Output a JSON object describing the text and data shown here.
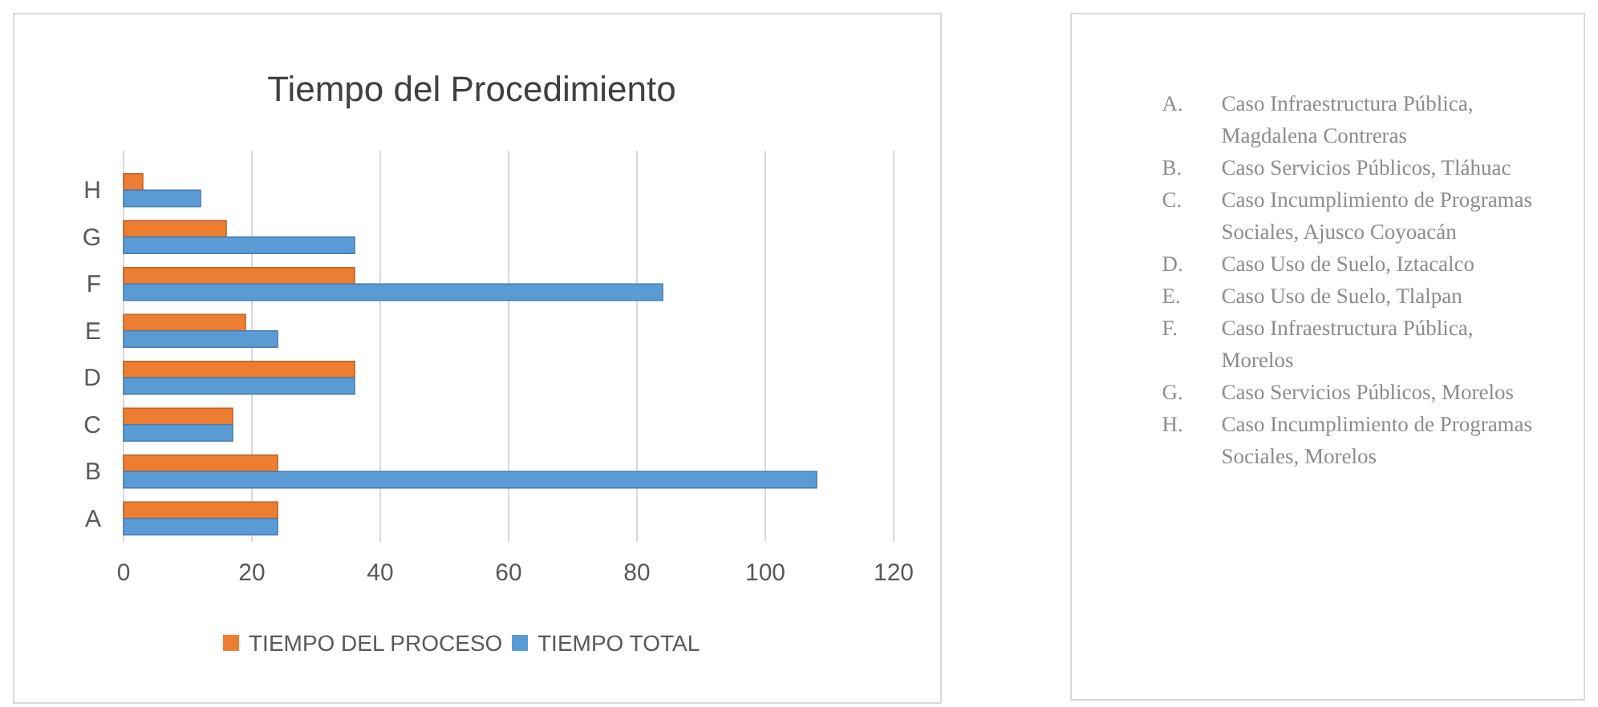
{
  "chart_data": {
    "type": "bar",
    "orientation": "horizontal",
    "title": "Tiempo del Procedimiento",
    "categories": [
      "H",
      "G",
      "F",
      "E",
      "D",
      "C",
      "B",
      "A"
    ],
    "series": [
      {
        "name": "TIEMPO DEL PROCESO",
        "color": "#ed7d31",
        "values": [
          3,
          16,
          36,
          19,
          36,
          17,
          24,
          24
        ]
      },
      {
        "name": "TIEMPO TOTAL",
        "color": "#5b9bd5",
        "values": [
          12,
          36,
          84,
          24,
          36,
          17,
          108,
          24
        ]
      }
    ],
    "xlim": [
      0,
      120
    ],
    "xticks": [
      0,
      20,
      40,
      60,
      80,
      100,
      120
    ],
    "grid": "x",
    "legend": "bottom",
    "annotations": [
      "A. Caso Infraestructura Pública, Magdalena Contreras",
      "B. Caso Servicios Públicos, Tláhuac",
      "C. Caso Incumplimiento de Programas Sociales, Ajusco Coyoacán",
      "D. Caso Uso de Suelo, Iztacalco",
      "E. Caso Uso de Suelo, Tlalpan",
      "F. Caso Infraestructura Pública, Morelos",
      "G. Caso Servicios Públicos, Morelos",
      "H. Caso Incumplimiento de Programas Sociales, Morelos"
    ]
  }
}
